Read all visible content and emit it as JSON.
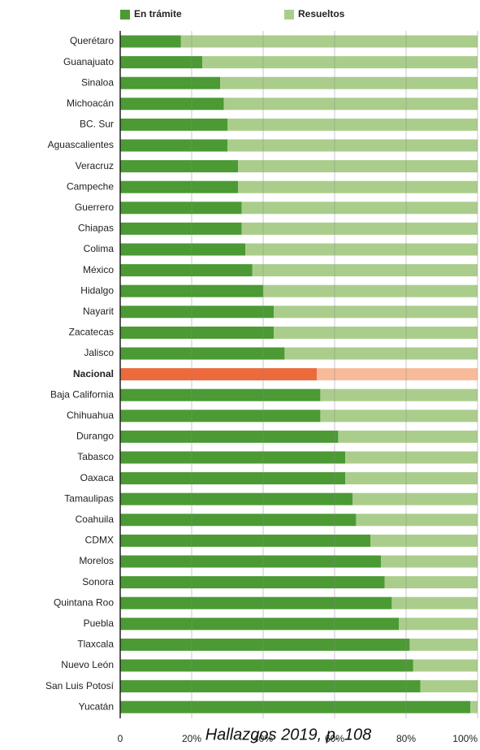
{
  "chart_data": {
    "type": "stacked-barh",
    "caption": "Hallazgos 2019, p. 108",
    "categories": [
      "Querétaro",
      "Guanajuato",
      "Sinaloa",
      "Michoacán",
      "BC. Sur",
      "Aguascalientes",
      "Veracruz",
      "Campeche",
      "Guerrero",
      "Chiapas",
      "Colima",
      "México",
      "Hidalgo",
      "Nayarit",
      "Zacatecas",
      "Jalisco",
      "Nacional",
      "Baja California",
      "Chihuahua",
      "Durango",
      "Tabasco",
      "Oaxaca",
      "Tamaulipas",
      "Coahuila",
      "CDMX",
      "Morelos",
      "Sonora",
      "Quintana Roo",
      "Puebla",
      "Tlaxcala",
      "Nuevo León",
      "San Luis Potosí",
      "Yucatán"
    ],
    "series": [
      {
        "name": "En trámite",
        "color": "#4b9a34",
        "values": [
          17,
          23,
          28,
          29,
          30,
          30,
          33,
          33,
          34,
          34,
          35,
          37,
          40,
          43,
          43,
          46,
          55,
          56,
          56,
          61,
          63,
          63,
          65,
          66,
          70,
          73,
          74,
          76,
          78,
          81,
          82,
          84,
          98
        ],
        "colors": [
          "#4b9a34",
          "#4b9a34",
          "#4b9a34",
          "#4b9a34",
          "#4b9a34",
          "#4b9a34",
          "#4b9a34",
          "#4b9a34",
          "#4b9a34",
          "#4b9a34",
          "#4b9a34",
          "#4b9a34",
          "#4b9a34",
          "#4b9a34",
          "#4b9a34",
          "#4b9a34",
          "#ec6a3c",
          "#4b9a34",
          "#4b9a34",
          "#4b9a34",
          "#4b9a34",
          "#4b9a34",
          "#4b9a34",
          "#4b9a34",
          "#4b9a34",
          "#4b9a34",
          "#4b9a34",
          "#4b9a34",
          "#4b9a34",
          "#4b9a34",
          "#4b9a34",
          "#4b9a34",
          "#4b9a34"
        ]
      },
      {
        "name": "Resueltos",
        "color": "#abcd8c",
        "values": [
          83,
          77,
          72,
          71,
          70,
          70,
          67,
          67,
          66,
          66,
          65,
          63,
          60,
          57,
          57,
          54,
          45,
          44,
          44,
          39,
          37,
          37,
          35,
          34,
          30,
          27,
          26,
          24,
          22,
          19,
          18,
          16,
          2
        ],
        "colors": [
          "#abcd8c",
          "#abcd8c",
          "#abcd8c",
          "#abcd8c",
          "#abcd8c",
          "#abcd8c",
          "#abcd8c",
          "#abcd8c",
          "#abcd8c",
          "#abcd8c",
          "#abcd8c",
          "#abcd8c",
          "#abcd8c",
          "#abcd8c",
          "#abcd8c",
          "#abcd8c",
          "#f7bb9a",
          "#abcd8c",
          "#abcd8c",
          "#abcd8c",
          "#abcd8c",
          "#abcd8c",
          "#abcd8c",
          "#abcd8c",
          "#abcd8c",
          "#abcd8c",
          "#abcd8c",
          "#abcd8c",
          "#abcd8c",
          "#abcd8c",
          "#abcd8c",
          "#abcd8c",
          "#abcd8c"
        ]
      }
    ],
    "xlim": [
      0,
      100
    ],
    "xticks": [
      0,
      {
        "value": 20,
        "label": "20%"
      },
      {
        "value": 40,
        "label": "40%"
      },
      {
        "value": 60,
        "label": "60%"
      },
      {
        "value": 80,
        "label": "80%"
      },
      {
        "value": 100,
        "label": "100%"
      }
    ],
    "grid": true
  }
}
